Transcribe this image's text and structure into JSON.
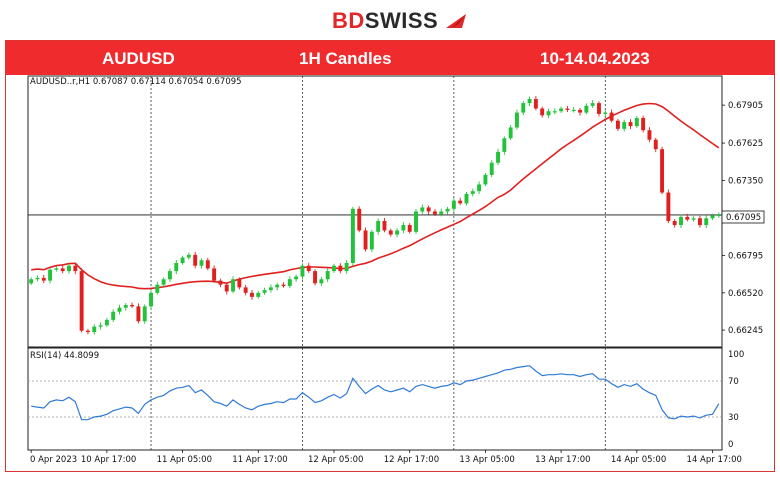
{
  "brand": {
    "part1": "BD",
    "part2": "SWISS"
  },
  "header": {
    "symbol": "AUDUSD",
    "timeframe": "1H Candles",
    "dates": "10-14.04.2023"
  },
  "price_info": "AUDUSD..r,H1  0.67087 0.67114 0.67054 0.67095",
  "rsi_info": "RSI(14) 44.8099",
  "current_price_label": "0.67095",
  "colors": {
    "bull": "#22c23a",
    "bear": "#e0201e",
    "ma": "#e0201e",
    "rsi": "#2f7ad6",
    "header": "#ef2b2d"
  },
  "chart_data": {
    "type": "candlestick",
    "price_ticks": [
      "0.67905",
      "0.67625",
      "0.67350",
      "0.66795",
      "0.66520",
      "0.66245"
    ],
    "price_tick_values": [
      0.67905,
      0.67625,
      0.6735,
      0.66795,
      0.6652,
      0.66245
    ],
    "ylim": [
      0.6612,
      0.6812
    ],
    "rsi_ticks": [
      "100",
      "70",
      "30",
      "0"
    ],
    "rsi_ylim": [
      0,
      100
    ],
    "rsi_levels": [
      70,
      30
    ],
    "x_ticks": [
      "0 Apr 2023",
      "10 Apr 17:00",
      "11 Apr 05:00",
      "11 Apr 17:00",
      "12 Apr 05:00",
      "12 Apr 17:00",
      "13 Apr 05:00",
      "13 Apr 17:00",
      "14 Apr 05:00",
      "14 Apr 17:00"
    ],
    "x_tick_bar_index": [
      0,
      12,
      24,
      36,
      48,
      60,
      72,
      84,
      96,
      108
    ],
    "day_separator_bar_index": [
      19,
      43,
      67,
      91
    ],
    "current_price": 0.67095,
    "closes": [
      0.6662,
      0.6663,
      0.6661,
      0.6669,
      0.667,
      0.6668,
      0.6672,
      0.6668,
      0.6624,
      0.6623,
      0.6627,
      0.6628,
      0.6632,
      0.6638,
      0.6641,
      0.6643,
      0.6642,
      0.6631,
      0.6642,
      0.6652,
      0.6658,
      0.6662,
      0.6668,
      0.6674,
      0.6678,
      0.668,
      0.6672,
      0.6676,
      0.667,
      0.6661,
      0.6658,
      0.6653,
      0.6662,
      0.6656,
      0.6652,
      0.6649,
      0.6652,
      0.6654,
      0.6656,
      0.6658,
      0.6657,
      0.6662,
      0.6664,
      0.6672,
      0.6668,
      0.6659,
      0.6662,
      0.6668,
      0.6672,
      0.6668,
      0.6674,
      0.6714,
      0.6698,
      0.6684,
      0.6697,
      0.6705,
      0.6698,
      0.6695,
      0.6698,
      0.6702,
      0.6697,
      0.6712,
      0.6715,
      0.6712,
      0.671,
      0.6712,
      0.6714,
      0.672,
      0.6718,
      0.6725,
      0.6727,
      0.6732,
      0.6739,
      0.6748,
      0.6756,
      0.6766,
      0.6774,
      0.6785,
      0.6792,
      0.6795,
      0.6788,
      0.6783,
      0.6786,
      0.6786,
      0.6788,
      0.6787,
      0.6787,
      0.6785,
      0.679,
      0.6792,
      0.6784,
      0.6785,
      0.6779,
      0.6773,
      0.6778,
      0.6775,
      0.6781,
      0.6772,
      0.6765,
      0.6758,
      0.6726,
      0.6705,
      0.6702,
      0.6708,
      0.6706,
      0.6707,
      0.6702,
      0.6707,
      0.6709,
      0.67095
    ],
    "moving_average_endpoints": [
      0.6669,
      0.6759
    ],
    "rsi": [
      42,
      41,
      40,
      47,
      49,
      48,
      52,
      47,
      27,
      27,
      30,
      31,
      33,
      37,
      39,
      41,
      40,
      34,
      44,
      49,
      52,
      54,
      59,
      62,
      63,
      65,
      57,
      60,
      54,
      47,
      45,
      42,
      49,
      44,
      40,
      38,
      42,
      44,
      45,
      47,
      46,
      50,
      50,
      57,
      52,
      46,
      48,
      52,
      55,
      51,
      56,
      73,
      64,
      56,
      61,
      65,
      60,
      58,
      60,
      62,
      58,
      64,
      66,
      64,
      62,
      64,
      65,
      68,
      66,
      70,
      71,
      73,
      75,
      77,
      79,
      82,
      83,
      85,
      86,
      87,
      81,
      76,
      77,
      77,
      78,
      77,
      77,
      75,
      77,
      78,
      72,
      72,
      67,
      63,
      66,
      64,
      67,
      61,
      57,
      54,
      38,
      29,
      28,
      31,
      30,
      31,
      29,
      32,
      33,
      44.8
    ]
  }
}
